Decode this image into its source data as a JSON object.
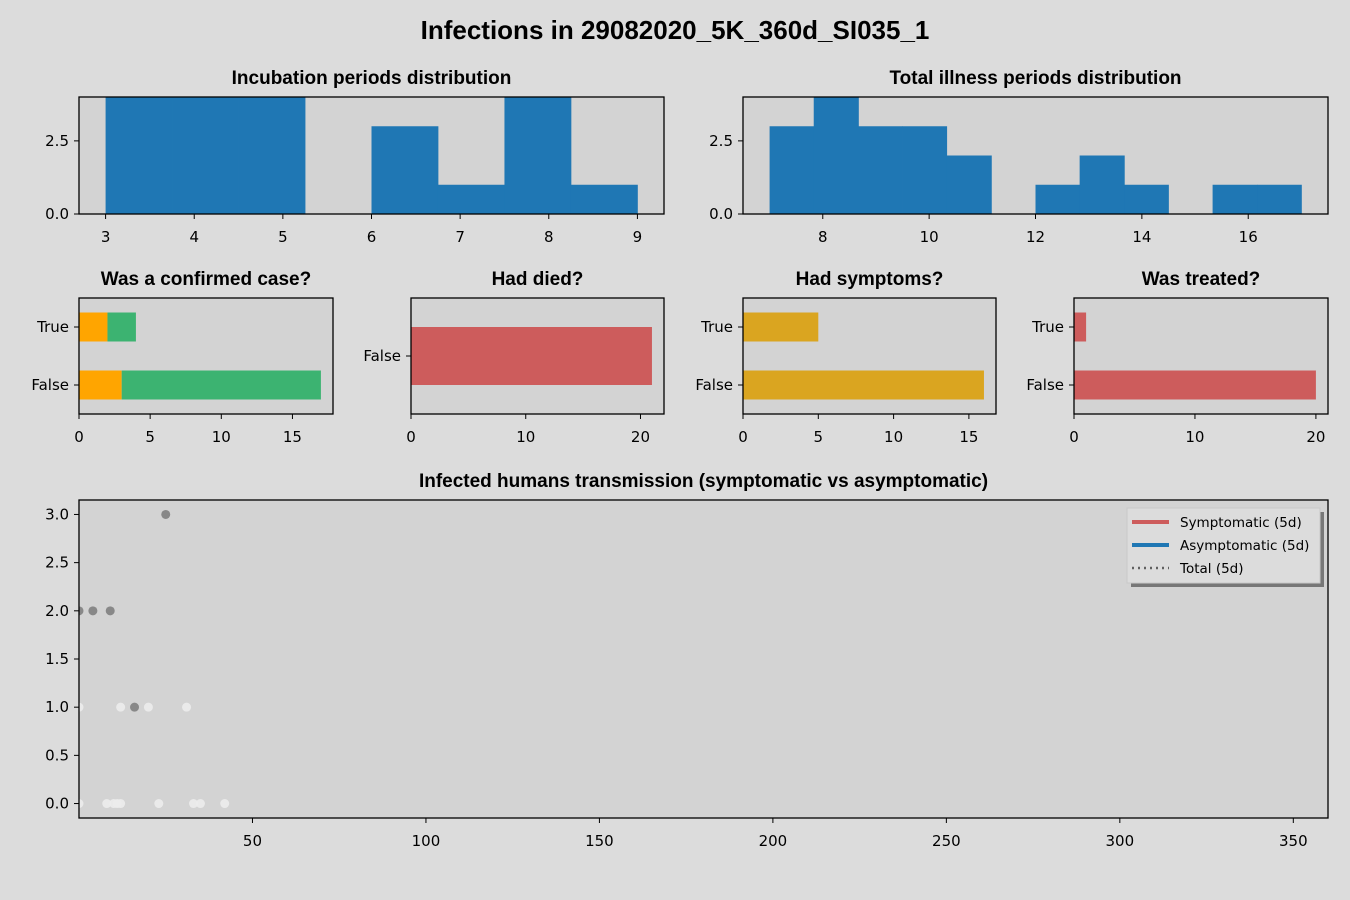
{
  "suptitle": "Infections in 29082020_5K_360d_SI035_1",
  "colors": {
    "figure_bg": "#dcdcdc",
    "axes_bg": "#d3d3d3",
    "hist_blue": "#1f77b4",
    "orange": "#ffa500",
    "green": "#3cb371",
    "indianred": "#cd5c5c",
    "goldenrod": "#daa520",
    "dark_point": "#808080",
    "light_point": "#ececec"
  },
  "chart_data": [
    {
      "type": "histogram",
      "title": "Incubation periods distribution",
      "xlim": [
        2.7,
        9.3
      ],
      "ylim": [
        0,
        4
      ],
      "xticks": [
        3,
        4,
        5,
        6,
        7,
        8,
        9
      ],
      "yticks": [
        0.0,
        2.5
      ],
      "ytick_labels": [
        "0.0",
        "2.5"
      ],
      "bins": [
        {
          "x0": 3.0,
          "x1": 3.75,
          "count": 4
        },
        {
          "x0": 3.75,
          "x1": 4.5,
          "count": 4
        },
        {
          "x0": 4.5,
          "x1": 5.25,
          "count": 4
        },
        {
          "x0": 5.25,
          "x1": 6.0,
          "count": 0
        },
        {
          "x0": 6.0,
          "x1": 6.75,
          "count": 3
        },
        {
          "x0": 6.75,
          "x1": 7.5,
          "count": 1
        },
        {
          "x0": 7.5,
          "x1": 8.25,
          "count": 4
        },
        {
          "x0": 8.25,
          "x1": 9.0,
          "count": 1
        }
      ]
    },
    {
      "type": "histogram",
      "title": "Total illness periods distribution",
      "xlim": [
        6.5,
        17.5
      ],
      "ylim": [
        0,
        4
      ],
      "xticks": [
        8,
        10,
        12,
        14,
        16
      ],
      "yticks": [
        0.0,
        2.5
      ],
      "ytick_labels": [
        "0.0",
        "2.5"
      ],
      "bins": [
        {
          "x0": 7.0,
          "x1": 7.83,
          "count": 3
        },
        {
          "x0": 7.83,
          "x1": 8.67,
          "count": 4
        },
        {
          "x0": 8.67,
          "x1": 9.5,
          "count": 3
        },
        {
          "x0": 9.5,
          "x1": 10.33,
          "count": 3
        },
        {
          "x0": 10.33,
          "x1": 11.17,
          "count": 2
        },
        {
          "x0": 11.17,
          "x1": 12.0,
          "count": 0
        },
        {
          "x0": 12.0,
          "x1": 12.83,
          "count": 1
        },
        {
          "x0": 12.83,
          "x1": 13.67,
          "count": 2
        },
        {
          "x0": 13.67,
          "x1": 14.5,
          "count": 1
        },
        {
          "x0": 14.5,
          "x1": 15.33,
          "count": 0
        },
        {
          "x0": 15.33,
          "x1": 16.17,
          "count": 1
        },
        {
          "x0": 16.17,
          "x1": 17.0,
          "count": 1
        }
      ]
    },
    {
      "type": "bar",
      "orientation": "horizontal",
      "stacked": true,
      "title": "Was a confirmed case?",
      "categories": [
        "False",
        "True"
      ],
      "xlim": [
        0,
        17.85
      ],
      "xticks": [
        0,
        5,
        10,
        15
      ],
      "series": [
        {
          "color": "#ffa500",
          "values": [
            3,
            2
          ]
        },
        {
          "color": "#3cb371",
          "values": [
            14,
            2
          ]
        }
      ]
    },
    {
      "type": "bar",
      "orientation": "horizontal",
      "stacked": true,
      "title": "Had died?",
      "categories": [
        "False"
      ],
      "xlim": [
        0,
        22.05
      ],
      "xticks": [
        0,
        10,
        20
      ],
      "series": [
        {
          "color": "#cd5c5c",
          "values": [
            21
          ]
        }
      ]
    },
    {
      "type": "bar",
      "orientation": "horizontal",
      "stacked": true,
      "title": "Had symptoms?",
      "categories": [
        "False",
        "True"
      ],
      "xlim": [
        0,
        16.8
      ],
      "xticks": [
        0,
        5,
        10,
        15
      ],
      "series": [
        {
          "color": "#daa520",
          "values": [
            16,
            5
          ]
        }
      ]
    },
    {
      "type": "bar",
      "orientation": "horizontal",
      "stacked": true,
      "title": "Was treated?",
      "categories": [
        "False",
        "True"
      ],
      "xlim": [
        0,
        21
      ],
      "xticks": [
        0,
        10,
        20
      ],
      "series": [
        {
          "color": "#cd5c5c",
          "values": [
            20,
            1
          ]
        }
      ]
    },
    {
      "type": "scatter",
      "title": "Infected humans transmission (symptomatic vs asymptomatic)",
      "xlim": [
        0,
        360
      ],
      "ylim": [
        -0.15,
        3.15
      ],
      "xticks": [
        50,
        100,
        150,
        200,
        250,
        300,
        350
      ],
      "yticks": [
        0.0,
        0.5,
        1.0,
        1.5,
        2.0,
        2.5,
        3.0
      ],
      "ytick_labels": [
        "0.0",
        "0.5",
        "1.0",
        "1.5",
        "2.0",
        "2.5",
        "3.0"
      ],
      "legend": {
        "position": "top-right",
        "entries": [
          {
            "label": "Symptomatic (5d)",
            "color": "#cd5c5c",
            "style": "solid"
          },
          {
            "label": "Asymptomatic (5d)",
            "color": "#1f77b4",
            "style": "solid"
          },
          {
            "label": "Total (5d)",
            "color": "#606060",
            "style": "dotted"
          }
        ]
      },
      "series": [
        {
          "color": "#808080",
          "points": [
            [
              25,
              3
            ],
            [
              0,
              2
            ],
            [
              4,
              2
            ],
            [
              9,
              2
            ],
            [
              16,
              1
            ]
          ]
        },
        {
          "color": "#ececec",
          "points": [
            [
              0,
              1
            ],
            [
              12,
              1
            ],
            [
              20,
              1
            ],
            [
              31,
              1
            ],
            [
              0,
              0
            ],
            [
              8,
              0
            ],
            [
              10,
              0
            ],
            [
              11,
              0
            ],
            [
              12,
              0
            ],
            [
              23,
              0
            ],
            [
              33,
              0
            ],
            [
              35,
              0
            ],
            [
              42,
              0
            ]
          ]
        }
      ]
    }
  ]
}
